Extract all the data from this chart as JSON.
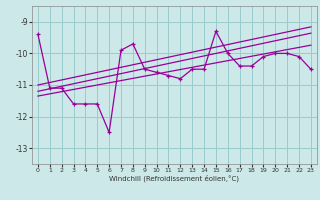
{
  "xlabel": "Windchill (Refroidissement éolien,°C)",
  "background_color": "#cce8e8",
  "grid_color": "#99cccc",
  "line_color": "#990099",
  "x_values": [
    0,
    1,
    2,
    3,
    4,
    5,
    6,
    7,
    8,
    9,
    10,
    11,
    12,
    13,
    14,
    15,
    16,
    17,
    18,
    19,
    20,
    21,
    22,
    23
  ],
  "y_main": [
    -9.4,
    -11.1,
    -11.1,
    -11.6,
    -11.6,
    -11.6,
    -12.5,
    -9.9,
    -9.7,
    -10.5,
    -10.6,
    -10.7,
    -10.8,
    -10.5,
    -10.5,
    -9.3,
    -10.0,
    -10.4,
    -10.4,
    -10.1,
    -10.0,
    -10.0,
    -10.1,
    -10.5
  ],
  "trend_mid": [
    -11.2,
    -11.12,
    -11.04,
    -10.96,
    -10.88,
    -10.8,
    -10.72,
    -10.64,
    -10.56,
    -10.48,
    -10.4,
    -10.32,
    -10.24,
    -10.16,
    -10.08,
    -10.0,
    -9.92,
    -9.84,
    -9.76,
    -9.68,
    -9.6,
    -9.52,
    -9.44,
    -9.36
  ],
  "trend_upper": [
    -11.0,
    -10.92,
    -10.84,
    -10.76,
    -10.68,
    -10.6,
    -10.52,
    -10.44,
    -10.36,
    -10.28,
    -10.2,
    -10.12,
    -10.04,
    -9.96,
    -9.88,
    -9.8,
    -9.72,
    -9.64,
    -9.56,
    -9.48,
    -9.4,
    -9.32,
    -9.24,
    -9.16
  ],
  "trend_lower": [
    -11.35,
    -11.28,
    -11.21,
    -11.14,
    -11.07,
    -11.0,
    -10.93,
    -10.86,
    -10.79,
    -10.72,
    -10.65,
    -10.58,
    -10.51,
    -10.44,
    -10.37,
    -10.3,
    -10.23,
    -10.16,
    -10.09,
    -10.02,
    -9.95,
    -9.88,
    -9.81,
    -9.74
  ],
  "ylim": [
    -13.5,
    -8.5
  ],
  "yticks": [
    -9,
    -10,
    -11,
    -12,
    -13
  ],
  "xlim": [
    -0.5,
    23.5
  ],
  "xticks": [
    0,
    1,
    2,
    3,
    4,
    5,
    6,
    7,
    8,
    9,
    10,
    11,
    12,
    13,
    14,
    15,
    16,
    17,
    18,
    19,
    20,
    21,
    22,
    23
  ]
}
